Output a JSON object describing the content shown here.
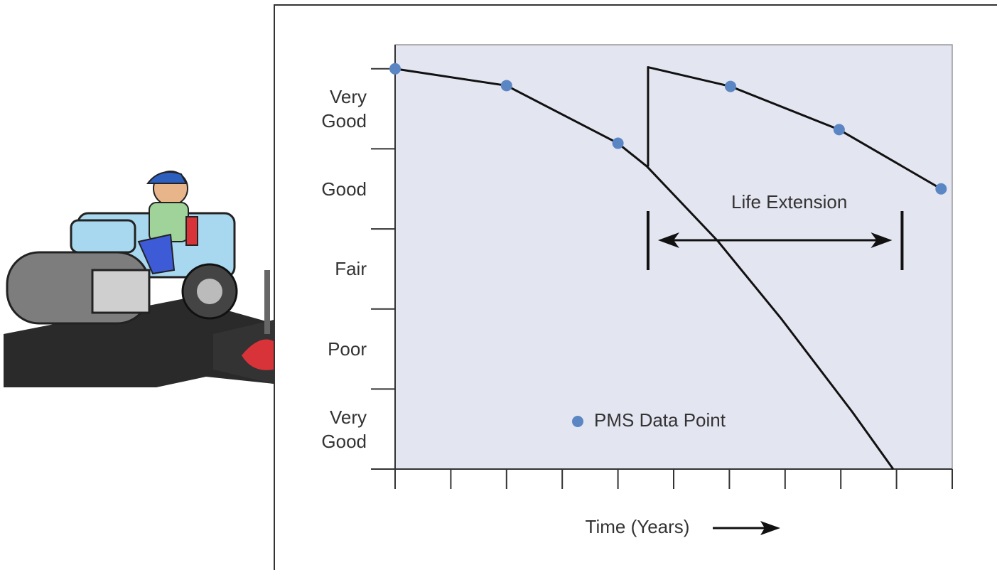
{
  "chart_data": {
    "type": "line",
    "xlabel": "Time (Years)",
    "xlim": [
      0,
      10
    ],
    "xticks": [
      0,
      1,
      2,
      3,
      4,
      5,
      6,
      7,
      8,
      9,
      10
    ],
    "ylim": [
      0,
      5.3
    ],
    "yticks": [
      0,
      1,
      2,
      3,
      4,
      5
    ],
    "ycategories": [
      "Very Good",
      "Poor",
      "Fair",
      "Good",
      "Very Good"
    ],
    "series": [
      {
        "color": "#111111",
        "x": [
          0,
          2,
          4,
          4.52,
          5.79,
          6.94,
          8.21,
          8.94
        ],
        "values": [
          5,
          4.79,
          4.07,
          3.78,
          2.85,
          1.87,
          0.71,
          0
        ]
      },
      {
        "color": "#111111",
        "x": [
          4.54,
          4.54,
          6.02,
          7.97,
          9.8
        ],
        "values": [
          3.78,
          5.02,
          4.78,
          4.24,
          3.5
        ]
      },
      {
        "name": "PMS Data Point",
        "type": "scatter",
        "color": "#5b86c4",
        "x": [
          0,
          2,
          4,
          6.02,
          7.97,
          9.8
        ],
        "values": [
          5,
          4.79,
          4.07,
          4.78,
          4.24,
          3.5
        ]
      }
    ],
    "annotation": {
      "text": "Life Extension",
      "x": [
        4.54,
        9.1
      ]
    }
  }
}
